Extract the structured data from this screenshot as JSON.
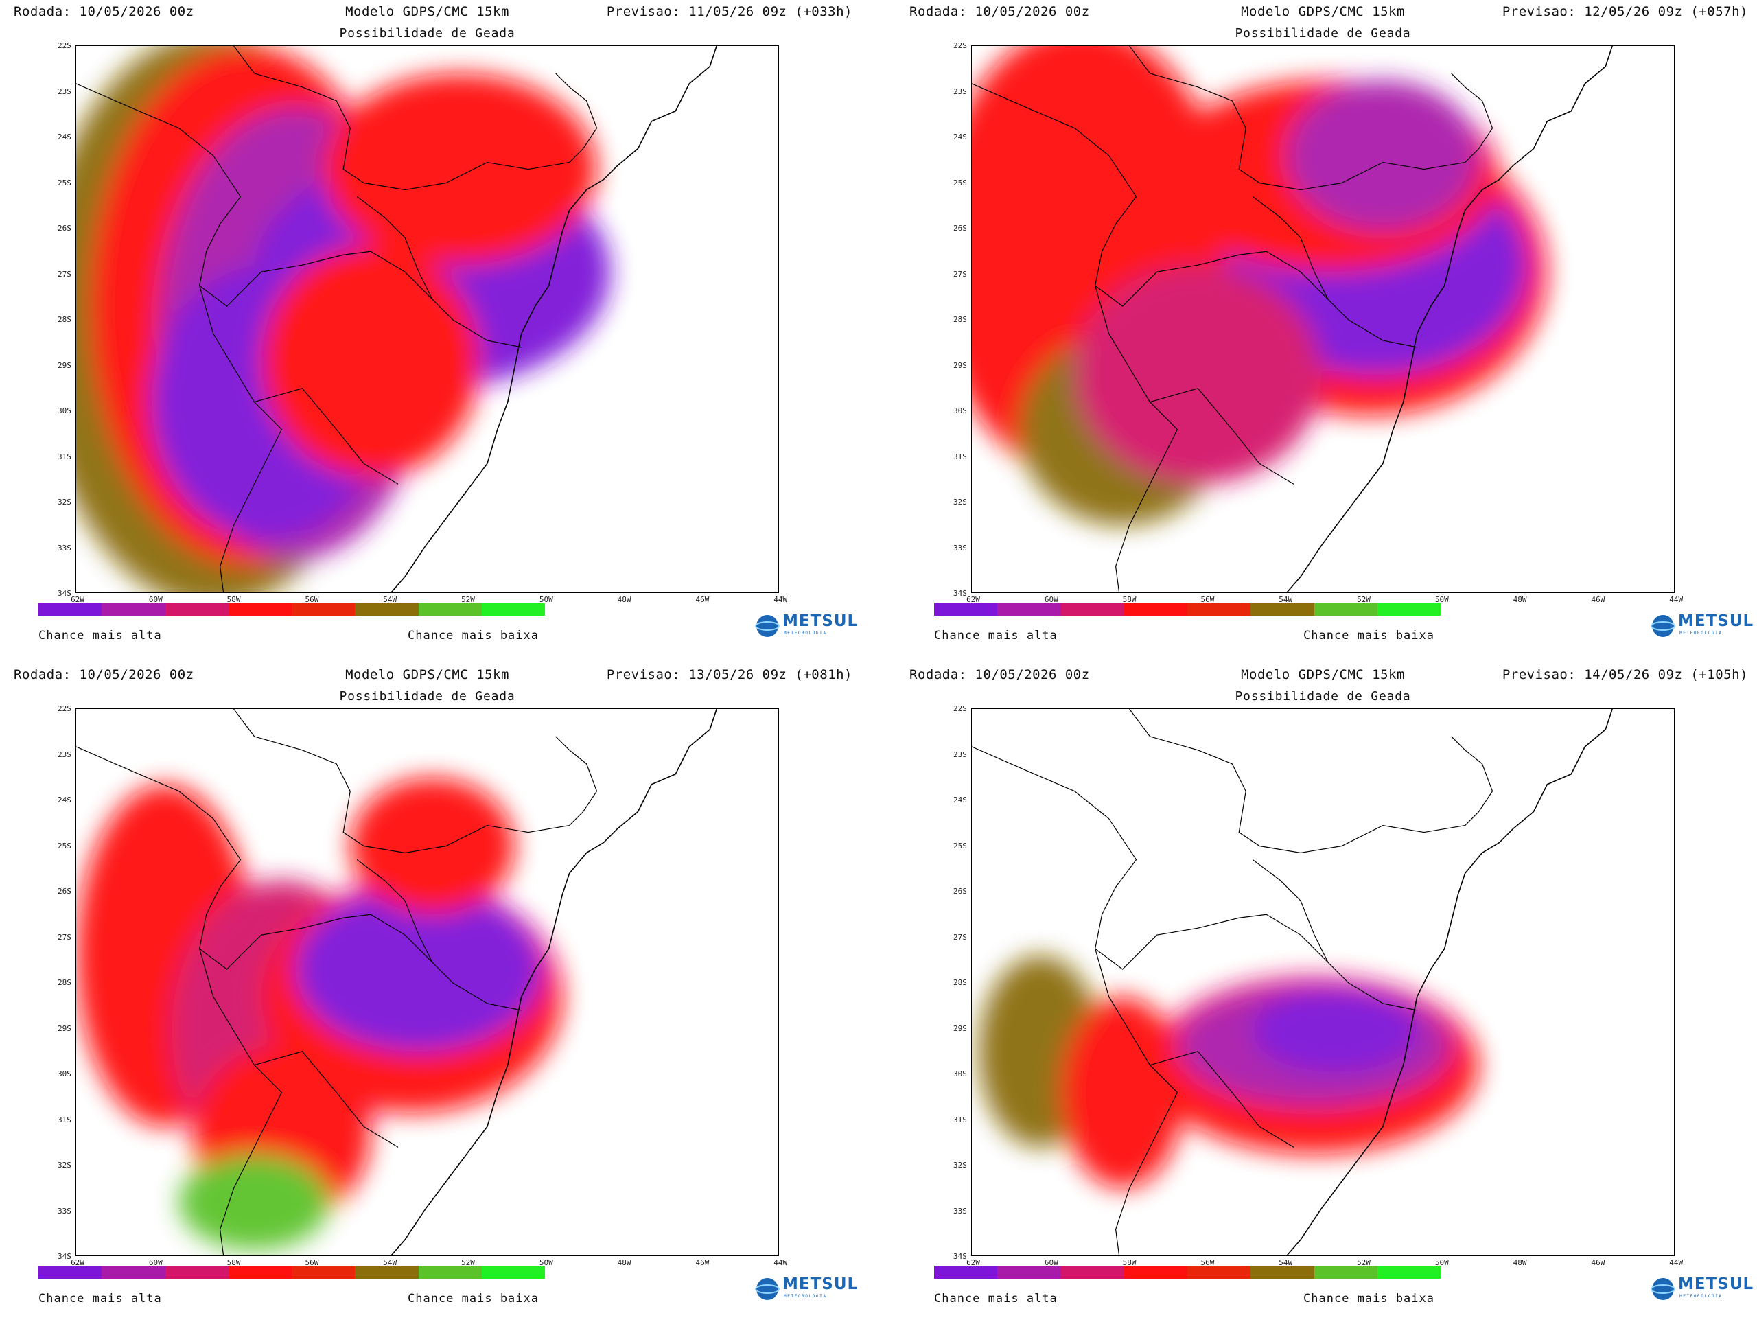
{
  "panels": [
    {
      "run": "Rodada: 10/05/2026 00z",
      "model": "Modelo GDPS/CMC 15km",
      "forecast": "Previsao: 11/05/26 09z (+033h)",
      "subtitle": "Possibilidade de Geada"
    },
    {
      "run": "Rodada: 10/05/2026 00z",
      "model": "Modelo GDPS/CMC 15km",
      "forecast": "Previsao: 12/05/26 09z (+057h)",
      "subtitle": "Possibilidade de Geada"
    },
    {
      "run": "Rodada: 10/05/2026 00z",
      "model": "Modelo GDPS/CMC 15km",
      "forecast": "Previsao: 13/05/26 09z (+081h)",
      "subtitle": "Possibilidade de Geada"
    },
    {
      "run": "Rodada: 10/05/2026 00z",
      "model": "Modelo GDPS/CMC 15km",
      "forecast": "Previsao: 14/05/26 09z (+105h)",
      "subtitle": "Possibilidade de Geada"
    }
  ],
  "lat_labels": [
    "22S",
    "23S",
    "24S",
    "25S",
    "26S",
    "27S",
    "28S",
    "29S",
    "30S",
    "31S",
    "32S",
    "33S",
    "34S"
  ],
  "lon_labels": [
    "62W",
    "60W",
    "58W",
    "56W",
    "54W",
    "52W",
    "50W",
    "48W",
    "46W",
    "44W"
  ],
  "legend": {
    "colors": [
      "#7d16d8",
      "#aa1aaa",
      "#d4166a",
      "#ff1010",
      "#e8260a",
      "#8b6d0a",
      "#5cc22a",
      "#22f022"
    ],
    "high_label": "Chance mais alta",
    "low_label": "Chance mais baixa"
  },
  "logo": {
    "text": "METSUL",
    "sub": "METEOROLOGIA"
  }
}
